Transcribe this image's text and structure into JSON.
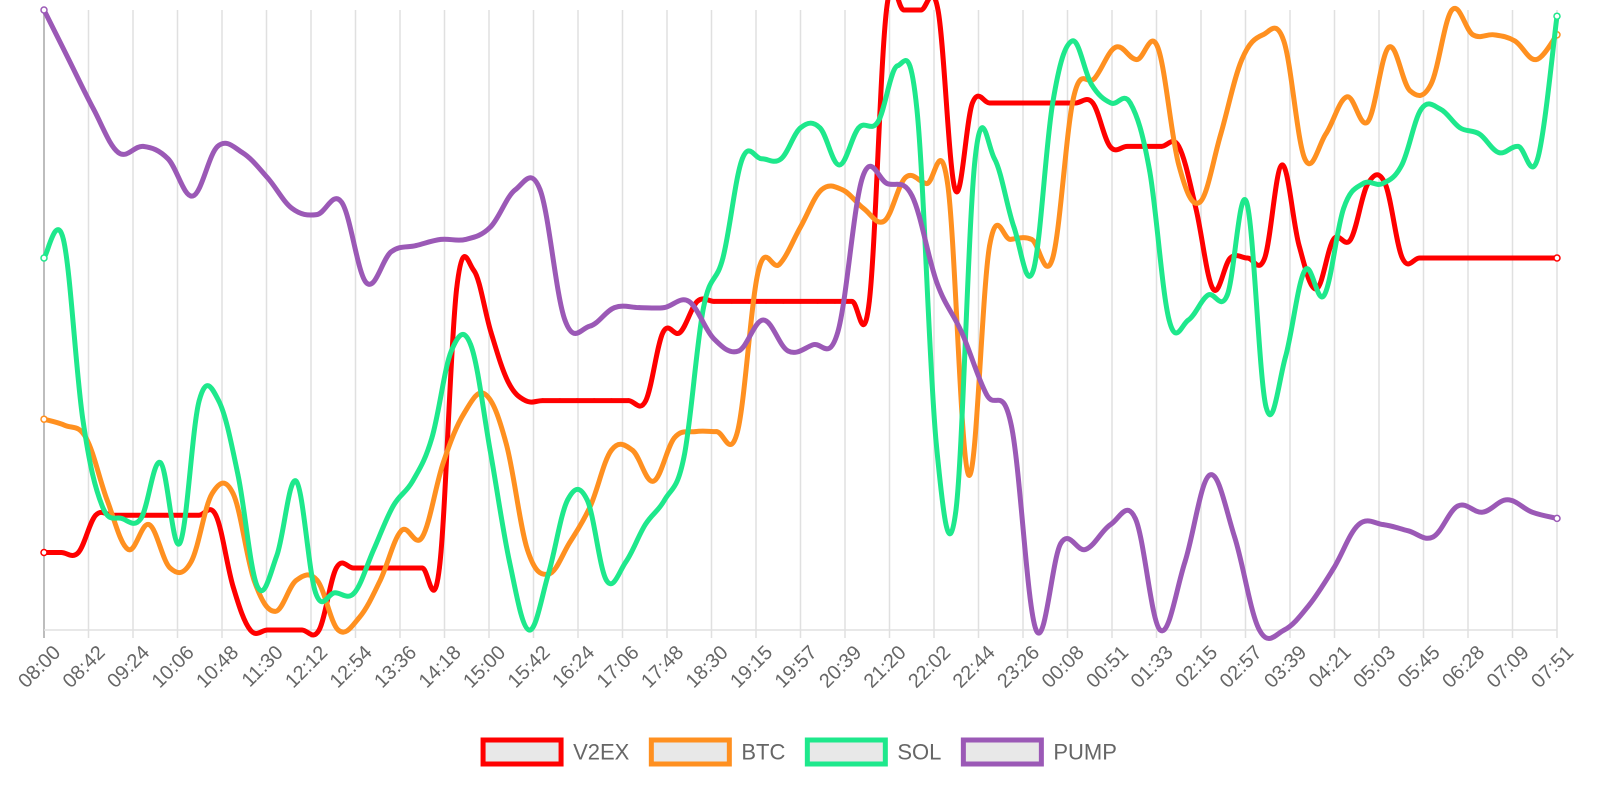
{
  "chart_data": {
    "type": "line",
    "title": "",
    "xlabel": "",
    "ylabel": "",
    "ylim": [
      0,
      100
    ],
    "grid": "vertical",
    "legend_position": "bottom",
    "x_tick_labels": [
      "08:00",
      "08:42",
      "09:24",
      "10:06",
      "10:48",
      "11:30",
      "12:12",
      "12:54",
      "13:36",
      "14:18",
      "15:00",
      "15:42",
      "16:24",
      "17:06",
      "17:48",
      "18:30",
      "19:15",
      "19:57",
      "20:39",
      "21:20",
      "22:02",
      "22:44",
      "23:26",
      "00:08",
      "00:51",
      "01:33",
      "02:15",
      "02:57",
      "03:39",
      "04:21",
      "05:03",
      "05:45",
      "06:28",
      "07:09",
      "07:51"
    ],
    "series": [
      {
        "name": "V2EX",
        "color": "#ff0000",
        "values": [
          12.5,
          12.5,
          12.5,
          18.5,
          18.5,
          18.5,
          18.5,
          18.5,
          18.5,
          18.5,
          18.5,
          7,
          0,
          0,
          0,
          0,
          0,
          10,
          10,
          10,
          10,
          10,
          10,
          10,
          55,
          58,
          48,
          40,
          37,
          37,
          37,
          37,
          37,
          37,
          37,
          37,
          48,
          48,
          53,
          53,
          53,
          53,
          53,
          53,
          53,
          53,
          53,
          53,
          53,
          100,
          100,
          100,
          100,
          71,
          85,
          85,
          85,
          85,
          85,
          85,
          85,
          85,
          78,
          78,
          78,
          78,
          78,
          68,
          55,
          60,
          60,
          60,
          75,
          62,
          55,
          63,
          63,
          72,
          72,
          60,
          60,
          60,
          60,
          60,
          60,
          60,
          60,
          60,
          60
        ]
      },
      {
        "name": "BTC",
        "color": "#ff9020",
        "values": [
          34,
          33,
          31,
          21,
          13,
          17,
          10,
          11,
          22,
          22,
          8,
          3,
          8,
          8,
          0,
          2,
          8,
          16,
          15,
          27,
          35,
          38,
          30,
          13,
          9,
          14,
          20,
          29,
          29,
          24,
          31,
          32,
          32,
          32,
          58,
          59,
          65,
          71,
          71,
          68,
          66,
          73,
          72,
          72,
          25,
          62,
          63,
          63,
          60,
          86,
          89,
          94,
          92,
          94,
          75,
          69,
          80,
          92,
          96,
          95,
          76,
          80,
          86,
          82,
          94,
          87,
          88,
          100,
          96,
          96,
          95,
          92,
          96
        ]
      },
      {
        "name": "SOL",
        "color": "#1ee88c",
        "values": [
          60,
          63,
          34,
          20,
          18,
          18,
          27,
          14,
          37,
          37,
          25,
          7,
          12,
          24,
          6,
          6,
          6,
          13,
          20,
          24,
          31,
          45,
          46,
          29,
          11,
          0,
          9,
          21,
          21,
          8,
          11,
          17,
          21,
          28,
          52,
          60,
          76,
          76,
          76,
          81,
          81,
          75,
          81,
          82,
          91,
          84,
          30,
          19,
          76,
          76,
          65,
          58,
          85,
          95,
          88,
          85,
          85,
          74,
          50,
          50,
          54,
          54,
          69,
          36,
          44,
          58,
          54,
          68,
          72,
          72,
          75,
          84,
          84,
          81,
          80,
          77,
          78,
          76,
          99
        ]
      },
      {
        "name": "PUMP",
        "color": "#9b59b6",
        "values": [
          100,
          92,
          84,
          77,
          78,
          76,
          70,
          78,
          77,
          73,
          68,
          67,
          69,
          56,
          61,
          62,
          63,
          63,
          65,
          71,
          71,
          50,
          49,
          52,
          52,
          52,
          53,
          47,
          45,
          50,
          45,
          46,
          48,
          73,
          72,
          70,
          56,
          48,
          38,
          33,
          0,
          14,
          13,
          17,
          18,
          0,
          11,
          25,
          15,
          0,
          0,
          4,
          10,
          17,
          17,
          16,
          15,
          20,
          19,
          21,
          19,
          18
        ]
      }
    ]
  }
}
